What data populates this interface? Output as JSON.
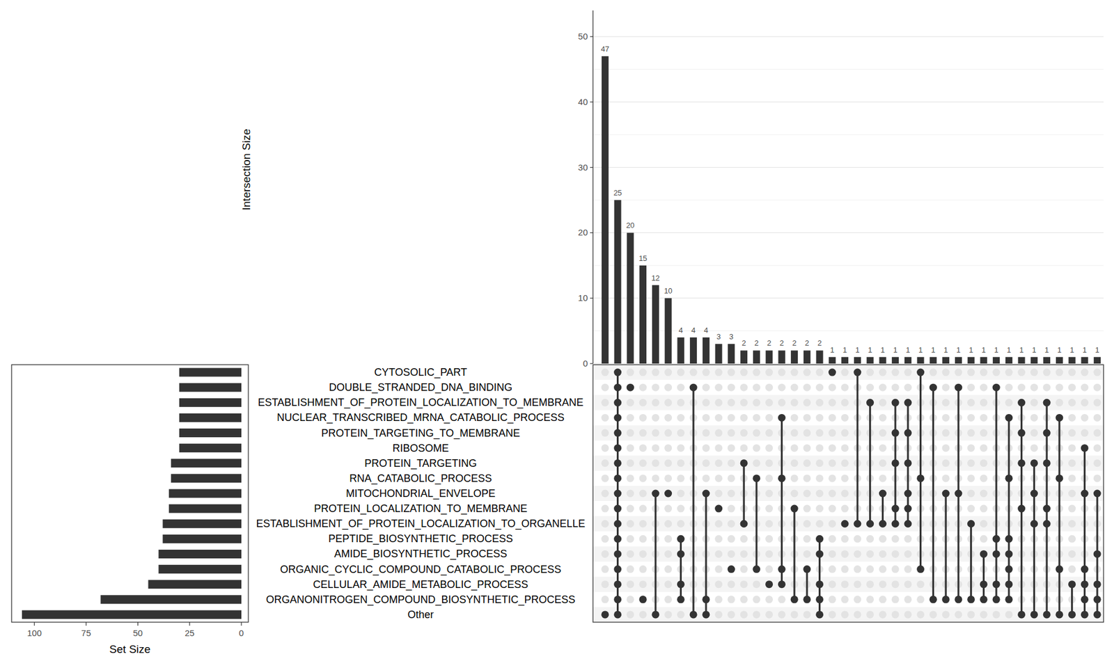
{
  "chart_data": {
    "type": "upset",
    "y_label": "Intersection Size",
    "x_label": "Set Size",
    "color": "#333333",
    "grid": true,
    "data_labels": true,
    "ylim": [
      0,
      54
    ],
    "yticks": [
      0,
      10,
      20,
      30,
      40,
      50
    ],
    "xlim": [
      0,
      111
    ],
    "xticks": [
      0,
      25,
      50,
      75,
      100
    ],
    "sets": {
      "names": [
        "CYTOSOLIC_PART",
        "DOUBLE_STRANDED_DNA_BINDING",
        "ESTABLISHMENT_OF_PROTEIN_LOCALIZATION_TO_MEMBRANE",
        "NUCLEAR_TRANSCRIBED_MRNA_CATABOLIC_PROCESS",
        "PROTEIN_TARGETING_TO_MEMBRANE",
        "RIBOSOME",
        "PROTEIN_TARGETING",
        "RNA_CATABOLIC_PROCESS",
        "MITOCHONDRIAL_ENVELOPE",
        "PROTEIN_LOCALIZATION_TO_MEMBRANE",
        "ESTABLISHMENT_OF_PROTEIN_LOCALIZATION_TO_ORGANELLE",
        "PEPTIDE_BIOSYNTHETIC_PROCESS",
        "AMIDE_BIOSYNTHETIC_PROCESS",
        "ORGANIC_CYCLIC_COMPOUND_CATABOLIC_PROCESS",
        "CELLULAR_AMIDE_METABOLIC_PROCESS",
        "ORGANONITROGEN_COMPOUND_BIOSYNTHETIC_PROCESS",
        "Other"
      ],
      "values": [
        30,
        30,
        30,
        30,
        30,
        30,
        34,
        34,
        35,
        35,
        38,
        38,
        40,
        40,
        45,
        68,
        106
      ]
    },
    "intersections": {
      "values": [
        47,
        25,
        20,
        15,
        12,
        10,
        4,
        4,
        4,
        3,
        3,
        2,
        2,
        2,
        2,
        2,
        2,
        2,
        1,
        1,
        1,
        1,
        1,
        1,
        1,
        1,
        1,
        1,
        1,
        1,
        1,
        1,
        1,
        1,
        1,
        1,
        1,
        1,
        1,
        1
      ],
      "members": [
        [
          "Other"
        ],
        [
          "CYTOSOLIC_PART",
          "DOUBLE_STRANDED_DNA_BINDING",
          "ESTABLISHMENT_OF_PROTEIN_LOCALIZATION_TO_MEMBRANE",
          "NUCLEAR_TRANSCRIBED_MRNA_CATABOLIC_PROCESS",
          "PROTEIN_TARGETING_TO_MEMBRANE",
          "RIBOSOME",
          "PROTEIN_TARGETING",
          "RNA_CATABOLIC_PROCESS",
          "MITOCHONDRIAL_ENVELOPE",
          "PROTEIN_LOCALIZATION_TO_MEMBRANE",
          "ESTABLISHMENT_OF_PROTEIN_LOCALIZATION_TO_ORGANELLE",
          "PEPTIDE_BIOSYNTHETIC_PROCESS",
          "AMIDE_BIOSYNTHETIC_PROCESS",
          "ORGANIC_CYCLIC_COMPOUND_CATABOLIC_PROCESS",
          "CELLULAR_AMIDE_METABOLIC_PROCESS",
          "ORGANONITROGEN_COMPOUND_BIOSYNTHETIC_PROCESS",
          "Other"
        ],
        [
          "DOUBLE_STRANDED_DNA_BINDING"
        ],
        [
          "ORGANONITROGEN_COMPOUND_BIOSYNTHETIC_PROCESS"
        ],
        [
          "MITOCHONDRIAL_ENVELOPE",
          "Other"
        ],
        [
          "MITOCHONDRIAL_ENVELOPE"
        ],
        [
          "PEPTIDE_BIOSYNTHETIC_PROCESS",
          "AMIDE_BIOSYNTHETIC_PROCESS",
          "CELLULAR_AMIDE_METABOLIC_PROCESS",
          "ORGANONITROGEN_COMPOUND_BIOSYNTHETIC_PROCESS"
        ],
        [
          "DOUBLE_STRANDED_DNA_BINDING",
          "Other"
        ],
        [
          "MITOCHONDRIAL_ENVELOPE",
          "ORGANONITROGEN_COMPOUND_BIOSYNTHETIC_PROCESS",
          "Other"
        ],
        [
          "PROTEIN_LOCALIZATION_TO_MEMBRANE"
        ],
        [
          "ORGANIC_CYCLIC_COMPOUND_CATABOLIC_PROCESS"
        ],
        [
          "PROTEIN_TARGETING",
          "ESTABLISHMENT_OF_PROTEIN_LOCALIZATION_TO_ORGANELLE"
        ],
        [
          "RNA_CATABOLIC_PROCESS",
          "ORGANIC_CYCLIC_COMPOUND_CATABOLIC_PROCESS"
        ],
        [
          "CELLULAR_AMIDE_METABOLIC_PROCESS"
        ],
        [
          "NUCLEAR_TRANSCRIBED_MRNA_CATABOLIC_PROCESS",
          "RNA_CATABOLIC_PROCESS",
          "ORGANIC_CYCLIC_COMPOUND_CATABOLIC_PROCESS",
          "CELLULAR_AMIDE_METABOLIC_PROCESS"
        ],
        [
          "PROTEIN_LOCALIZATION_TO_MEMBRANE",
          "ORGANONITROGEN_COMPOUND_BIOSYNTHETIC_PROCESS"
        ],
        [
          "ORGANIC_CYCLIC_COMPOUND_CATABOLIC_PROCESS",
          "ORGANONITROGEN_COMPOUND_BIOSYNTHETIC_PROCESS"
        ],
        [
          "PEPTIDE_BIOSYNTHETIC_PROCESS",
          "AMIDE_BIOSYNTHETIC_PROCESS",
          "CELLULAR_AMIDE_METABOLIC_PROCESS",
          "ORGANONITROGEN_COMPOUND_BIOSYNTHETIC_PROCESS",
          "Other"
        ],
        [
          "CYTOSOLIC_PART"
        ],
        [
          "ESTABLISHMENT_OF_PROTEIN_LOCALIZATION_TO_ORGANELLE"
        ],
        [
          "CYTOSOLIC_PART",
          "ESTABLISHMENT_OF_PROTEIN_LOCALIZATION_TO_ORGANELLE"
        ],
        [
          "ESTABLISHMENT_OF_PROTEIN_LOCALIZATION_TO_MEMBRANE",
          "ESTABLISHMENT_OF_PROTEIN_LOCALIZATION_TO_ORGANELLE"
        ],
        [
          "MITOCHONDRIAL_ENVELOPE",
          "ESTABLISHMENT_OF_PROTEIN_LOCALIZATION_TO_ORGANELLE"
        ],
        [
          "ESTABLISHMENT_OF_PROTEIN_LOCALIZATION_TO_MEMBRANE",
          "PROTEIN_TARGETING_TO_MEMBRANE",
          "PROTEIN_TARGETING",
          "PROTEIN_LOCALIZATION_TO_MEMBRANE",
          "ESTABLISHMENT_OF_PROTEIN_LOCALIZATION_TO_ORGANELLE"
        ],
        [
          "ESTABLISHMENT_OF_PROTEIN_LOCALIZATION_TO_MEMBRANE",
          "PROTEIN_TARGETING_TO_MEMBRANE",
          "PROTEIN_TARGETING",
          "MITOCHONDRIAL_ENVELOPE",
          "PROTEIN_LOCALIZATION_TO_MEMBRANE",
          "ESTABLISHMENT_OF_PROTEIN_LOCALIZATION_TO_ORGANELLE"
        ],
        [
          "CYTOSOLIC_PART",
          "RNA_CATABOLIC_PROCESS",
          "ORGANIC_CYCLIC_COMPOUND_CATABOLIC_PROCESS"
        ],
        [
          "DOUBLE_STRANDED_DNA_BINDING",
          "ORGANONITROGEN_COMPOUND_BIOSYNTHETIC_PROCESS"
        ],
        [
          "MITOCHONDRIAL_ENVELOPE",
          "ORGANONITROGEN_COMPOUND_BIOSYNTHETIC_PROCESS"
        ],
        [
          "DOUBLE_STRANDED_DNA_BINDING",
          "MITOCHONDRIAL_ENVELOPE",
          "ORGANONITROGEN_COMPOUND_BIOSYNTHETIC_PROCESS"
        ],
        [
          "ESTABLISHMENT_OF_PROTEIN_LOCALIZATION_TO_ORGANELLE",
          "ORGANONITROGEN_COMPOUND_BIOSYNTHETIC_PROCESS"
        ],
        [
          "AMIDE_BIOSYNTHETIC_PROCESS",
          "CELLULAR_AMIDE_METABOLIC_PROCESS",
          "ORGANONITROGEN_COMPOUND_BIOSYNTHETIC_PROCESS"
        ],
        [
          "DOUBLE_STRANDED_DNA_BINDING",
          "PEPTIDE_BIOSYNTHETIC_PROCESS",
          "AMIDE_BIOSYNTHETIC_PROCESS",
          "CELLULAR_AMIDE_METABOLIC_PROCESS",
          "ORGANONITROGEN_COMPOUND_BIOSYNTHETIC_PROCESS"
        ],
        [
          "NUCLEAR_TRANSCRIBED_MRNA_CATABOLIC_PROCESS",
          "RNA_CATABOLIC_PROCESS",
          "PEPTIDE_BIOSYNTHETIC_PROCESS",
          "AMIDE_BIOSYNTHETIC_PROCESS",
          "ORGANIC_CYCLIC_COMPOUND_CATABOLIC_PROCESS",
          "CELLULAR_AMIDE_METABOLIC_PROCESS",
          "ORGANONITROGEN_COMPOUND_BIOSYNTHETIC_PROCESS"
        ],
        [
          "ESTABLISHMENT_OF_PROTEIN_LOCALIZATION_TO_MEMBRANE",
          "PROTEIN_TARGETING_TO_MEMBRANE",
          "PROTEIN_TARGETING",
          "PROTEIN_LOCALIZATION_TO_MEMBRANE",
          "Other"
        ],
        [
          "PROTEIN_TARGETING",
          "MITOCHONDRIAL_ENVELOPE",
          "ESTABLISHMENT_OF_PROTEIN_LOCALIZATION_TO_ORGANELLE",
          "Other"
        ],
        [
          "ESTABLISHMENT_OF_PROTEIN_LOCALIZATION_TO_MEMBRANE",
          "PROTEIN_TARGETING_TO_MEMBRANE",
          "PROTEIN_TARGETING",
          "PROTEIN_LOCALIZATION_TO_MEMBRANE",
          "ESTABLISHMENT_OF_PROTEIN_LOCALIZATION_TO_ORGANELLE",
          "Other"
        ],
        [
          "NUCLEAR_TRANSCRIBED_MRNA_CATABOLIC_PROCESS",
          "RNA_CATABOLIC_PROCESS",
          "ORGANIC_CYCLIC_COMPOUND_CATABOLIC_PROCESS",
          "Other"
        ],
        [
          "CELLULAR_AMIDE_METABOLIC_PROCESS",
          "Other"
        ],
        [
          "RIBOSOME",
          "MITOCHONDRIAL_ENVELOPE",
          "ORGANIC_CYCLIC_COMPOUND_CATABOLIC_PROCESS",
          "CELLULAR_AMIDE_METABOLIC_PROCESS",
          "ORGANONITROGEN_COMPOUND_BIOSYNTHETIC_PROCESS",
          "Other"
        ],
        [
          "MITOCHONDRIAL_ENVELOPE",
          "AMIDE_BIOSYNTHETIC_PROCESS",
          "CELLULAR_AMIDE_METABOLIC_PROCESS",
          "ORGANONITROGEN_COMPOUND_BIOSYNTHETIC_PROCESS",
          "Other"
        ]
      ]
    }
  }
}
